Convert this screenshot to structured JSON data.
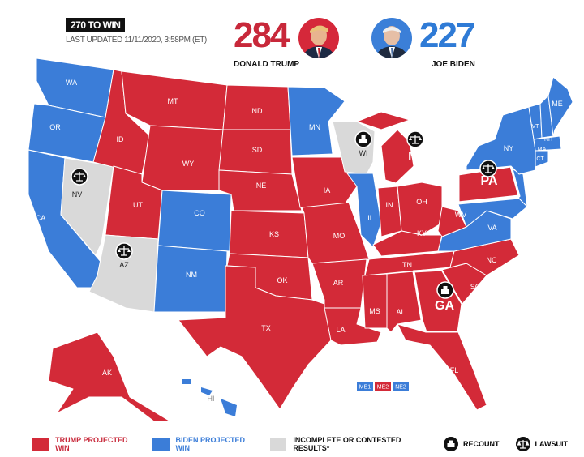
{
  "header": {
    "tag": "270 TO WIN",
    "last_updated": "LAST UPDATED 11/11/2020, 3:58PM (ET)"
  },
  "candidates": {
    "trump": {
      "votes": "284",
      "name": "DONALD TRUMP",
      "color": "#d32a38"
    },
    "biden": {
      "votes": "227",
      "name": "JOE BIDEN",
      "color": "#3b7dd8"
    }
  },
  "colors": {
    "trump": "#d32a38",
    "biden": "#3b7dd8",
    "contested": "#d9d9d9"
  },
  "states": [
    {
      "abbr": "WA",
      "result": "biden"
    },
    {
      "abbr": "OR",
      "result": "biden"
    },
    {
      "abbr": "CA",
      "result": "biden"
    },
    {
      "abbr": "NV",
      "result": "contested",
      "badge": "lawsuit"
    },
    {
      "abbr": "ID",
      "result": "trump"
    },
    {
      "abbr": "MT",
      "result": "trump"
    },
    {
      "abbr": "WY",
      "result": "trump"
    },
    {
      "abbr": "UT",
      "result": "trump"
    },
    {
      "abbr": "AZ",
      "result": "contested",
      "badge": "lawsuit"
    },
    {
      "abbr": "CO",
      "result": "biden"
    },
    {
      "abbr": "NM",
      "result": "biden"
    },
    {
      "abbr": "ND",
      "result": "trump"
    },
    {
      "abbr": "SD",
      "result": "trump"
    },
    {
      "abbr": "NE",
      "result": "trump"
    },
    {
      "abbr": "KS",
      "result": "trump"
    },
    {
      "abbr": "OK",
      "result": "trump"
    },
    {
      "abbr": "TX",
      "result": "trump"
    },
    {
      "abbr": "MN",
      "result": "biden"
    },
    {
      "abbr": "IA",
      "result": "trump"
    },
    {
      "abbr": "MO",
      "result": "trump"
    },
    {
      "abbr": "AR",
      "result": "trump"
    },
    {
      "abbr": "LA",
      "result": "trump"
    },
    {
      "abbr": "WI",
      "result": "contested",
      "badge": "recount"
    },
    {
      "abbr": "IL",
      "result": "biden"
    },
    {
      "abbr": "MI",
      "result": "trump",
      "badge": "lawsuit"
    },
    {
      "abbr": "IN",
      "result": "trump"
    },
    {
      "abbr": "OH",
      "result": "trump"
    },
    {
      "abbr": "KY",
      "result": "trump"
    },
    {
      "abbr": "TN",
      "result": "trump"
    },
    {
      "abbr": "MS",
      "result": "trump"
    },
    {
      "abbr": "AL",
      "result": "trump"
    },
    {
      "abbr": "GA",
      "result": "trump",
      "badge": "recount"
    },
    {
      "abbr": "FL",
      "result": "trump"
    },
    {
      "abbr": "SC",
      "result": "trump"
    },
    {
      "abbr": "NC",
      "result": "trump"
    },
    {
      "abbr": "VA",
      "result": "biden"
    },
    {
      "abbr": "WV",
      "result": "trump"
    },
    {
      "abbr": "PA",
      "result": "trump",
      "badge": "lawsuit"
    },
    {
      "abbr": "NY",
      "result": "biden"
    },
    {
      "abbr": "VT",
      "result": "biden"
    },
    {
      "abbr": "NH",
      "result": "biden"
    },
    {
      "abbr": "MA",
      "result": "biden"
    },
    {
      "abbr": "CT",
      "result": "biden"
    },
    {
      "abbr": "ME",
      "result": "biden"
    },
    {
      "abbr": "AK",
      "result": "trump"
    },
    {
      "abbr": "HI",
      "result": "biden"
    }
  ],
  "districts": [
    {
      "label": "ME1",
      "result": "biden"
    },
    {
      "label": "ME2",
      "result": "trump"
    },
    {
      "label": "NE2",
      "result": "biden"
    }
  ],
  "legend": {
    "trump": "TRUMP PROJECTED WIN",
    "biden": "BIDEN PROJECTED WIN",
    "contested": "INCOMPLETE OR CONTESTED RESULTS*",
    "recount": "RECOUNT",
    "lawsuit": "LAWSUIT",
    "recount_icon": "ballot-box-icon",
    "lawsuit_icon": "scales-icon"
  }
}
